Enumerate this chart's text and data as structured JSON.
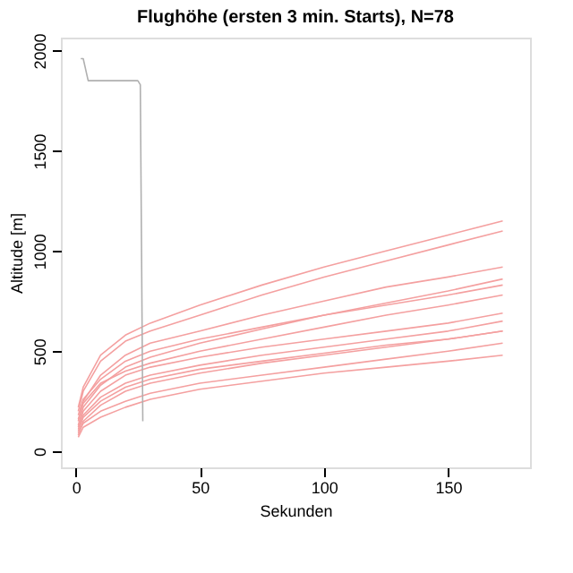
{
  "chart_data": {
    "type": "line",
    "title": "Flughöhe (ersten 3 min. Starts), N=78",
    "xlabel": "Sekunden",
    "ylabel": "Altitude [m]",
    "x": [
      1,
      3,
      10,
      20,
      30,
      50,
      75,
      100,
      125,
      150,
      172
    ],
    "xlim": [
      -6,
      183
    ],
    "xticks": [
      0,
      50,
      100,
      150
    ],
    "ylim": [
      -80,
      2065
    ],
    "yticks": [
      0,
      500,
      1000,
      1500,
      2000
    ],
    "grid": false,
    "line_style": "solid",
    "marker": "none",
    "series": [
      {
        "color": "#f4a0a0",
        "values": [
          80,
          150,
          230,
          300,
          340,
          390,
          440,
          480,
          520,
          560,
          600
        ]
      },
      {
        "color": "#f4a0a0",
        "values": [
          120,
          200,
          300,
          380,
          420,
          470,
          520,
          560,
          600,
          640,
          690
        ]
      },
      {
        "color": "#f4a0a0",
        "values": [
          180,
          260,
          360,
          450,
          500,
          560,
          620,
          680,
          730,
          780,
          830
        ]
      },
      {
        "color": "#f4a0a0",
        "values": [
          100,
          170,
          250,
          320,
          360,
          410,
          450,
          490,
          530,
          560,
          600
        ]
      },
      {
        "color": "#f4a0a0",
        "values": [
          150,
          250,
          380,
          480,
          540,
          600,
          680,
          750,
          820,
          870,
          920
        ]
      },
      {
        "color": "#f4a0a0",
        "values": [
          200,
          300,
          450,
          550,
          600,
          680,
          780,
          870,
          950,
          1030,
          1100
        ]
      },
      {
        "color": "#f4a0a0",
        "values": [
          90,
          140,
          200,
          250,
          290,
          340,
          380,
          420,
          460,
          500,
          540
        ]
      },
      {
        "color": "#f4a0a0",
        "values": [
          130,
          220,
          330,
          420,
          470,
          540,
          610,
          680,
          740,
          800,
          860
        ]
      },
      {
        "color": "#f4a0a0",
        "values": [
          110,
          180,
          270,
          340,
          380,
          430,
          480,
          520,
          560,
          600,
          650
        ]
      },
      {
        "color": "#f4a0a0",
        "values": [
          160,
          240,
          340,
          400,
          440,
          500,
          560,
          620,
          680,
          730,
          780
        ]
      },
      {
        "color": "#f4a0a0",
        "values": [
          70,
          120,
          170,
          220,
          260,
          310,
          350,
          390,
          420,
          450,
          480
        ]
      },
      {
        "color": "#f4a0a0",
        "values": [
          220,
          320,
          480,
          580,
          640,
          730,
          830,
          920,
          1000,
          1080,
          1150
        ]
      },
      {
        "color": "#b0b0b0",
        "x": [
          2,
          3,
          5,
          25,
          26,
          27
        ],
        "values": [
          1960,
          1960,
          1850,
          1850,
          1830,
          150
        ]
      }
    ]
  }
}
